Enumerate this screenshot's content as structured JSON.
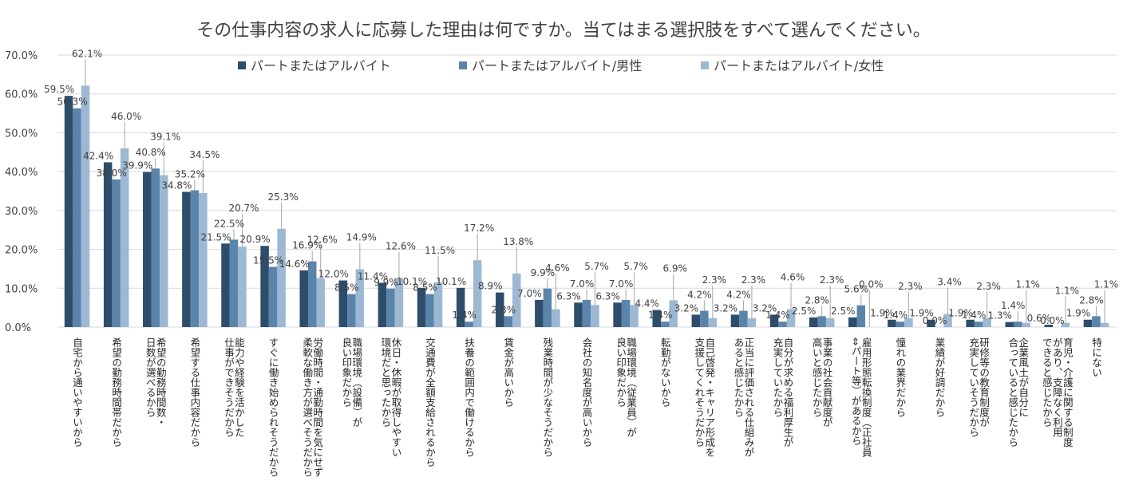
{
  "chart_data": {
    "type": "bar",
    "title": "その仕事内容の求人に応募した理由は何ですか。当てはまる選択肢をすべて選んでください。",
    "ylim": [
      0,
      70
    ],
    "yticks": [
      "0.0%",
      "10.0%",
      "20.0%",
      "30.0%",
      "40.0%",
      "50.0%",
      "60.0%",
      "70.0%"
    ],
    "value_suffix": "%",
    "legend_position": "top",
    "grid": true,
    "categories": [
      [
        "自宅から通いやすいから"
      ],
      [
        "希望の勤務時間帯だから"
      ],
      [
        "希望の勤務時間数・",
        "日数が選べるから"
      ],
      [
        "希望する仕事内容だから"
      ],
      [
        "能力や経験を活かした",
        "仕事ができそうだから"
      ],
      [
        "すぐに働き始められそうだから"
      ],
      [
        "労働時間・通勤時間を気にせず",
        "柔軟な働き方が選べそうだから"
      ],
      [
        "職場環境（設備）が",
        "良い印象だから"
      ],
      [
        "休日・休暇が取得しやすい",
        "環境だと思ったから"
      ],
      [
        "交通費が全額支給されるから"
      ],
      [
        "扶養の範囲内で働けるから"
      ],
      [
        "賃金が高いから"
      ],
      [
        "残業時間が少なそうだから"
      ],
      [
        "会社の知名度が高いから"
      ],
      [
        "職場環境（従業員）が",
        "良い印象だから"
      ],
      [
        "転勤がないから"
      ],
      [
        "自己啓発・キャリア形成を",
        "支援してくれそうだから"
      ],
      [
        "正当に評価される仕組みが",
        "あると感じたから"
      ],
      [
        "自分が求める福利厚生が",
        "充実していたから"
      ],
      [
        "事業の社会貢献度が",
        "高いと感じたから"
      ],
      [
        "雇用形態転換制度（正社員",
        "⇔パート等）があるから"
      ],
      [
        "憧れの業界だから"
      ],
      [
        "業績が好調だから"
      ],
      [
        "研修等の教育制度が",
        "充実していそうだから"
      ],
      [
        "企業風土が自分に",
        "合っていると感じたから"
      ],
      [
        "育児・介護に関する制度",
        "があり、支障なく利用",
        "できると感じたから"
      ],
      [
        "特にない"
      ]
    ],
    "series": [
      {
        "name": "パートまたはアルバイト",
        "color": "#2e4d6b",
        "values": [
          59.5,
          42.4,
          39.9,
          34.8,
          21.5,
          20.9,
          14.6,
          12.0,
          11.4,
          10.1,
          10.1,
          8.9,
          7.0,
          6.3,
          6.3,
          4.4,
          3.2,
          3.2,
          3.2,
          2.5,
          2.5,
          1.9,
          1.9,
          1.9,
          1.3,
          0.6,
          1.9
        ]
      },
      {
        "name": "パートまたはアルバイト/男性",
        "color": "#5b84ab",
        "values": [
          56.3,
          38.0,
          40.8,
          35.2,
          22.5,
          15.5,
          16.9,
          8.5,
          9.9,
          8.5,
          1.4,
          2.8,
          9.9,
          7.0,
          7.0,
          1.4,
          4.2,
          4.2,
          1.4,
          2.8,
          5.6,
          1.4,
          0.0,
          1.4,
          1.4,
          0.0,
          2.8
        ]
      },
      {
        "name": "パートまたはアルバイト/女性",
        "color": "#9db8d3",
        "values": [
          62.1,
          46.0,
          39.1,
          34.5,
          20.7,
          25.3,
          12.6,
          14.9,
          12.6,
          11.5,
          17.2,
          13.8,
          4.6,
          5.7,
          5.7,
          6.9,
          2.3,
          2.3,
          4.6,
          2.3,
          0.0,
          2.3,
          3.4,
          2.3,
          1.1,
          1.1,
          1.1
        ]
      }
    ]
  }
}
